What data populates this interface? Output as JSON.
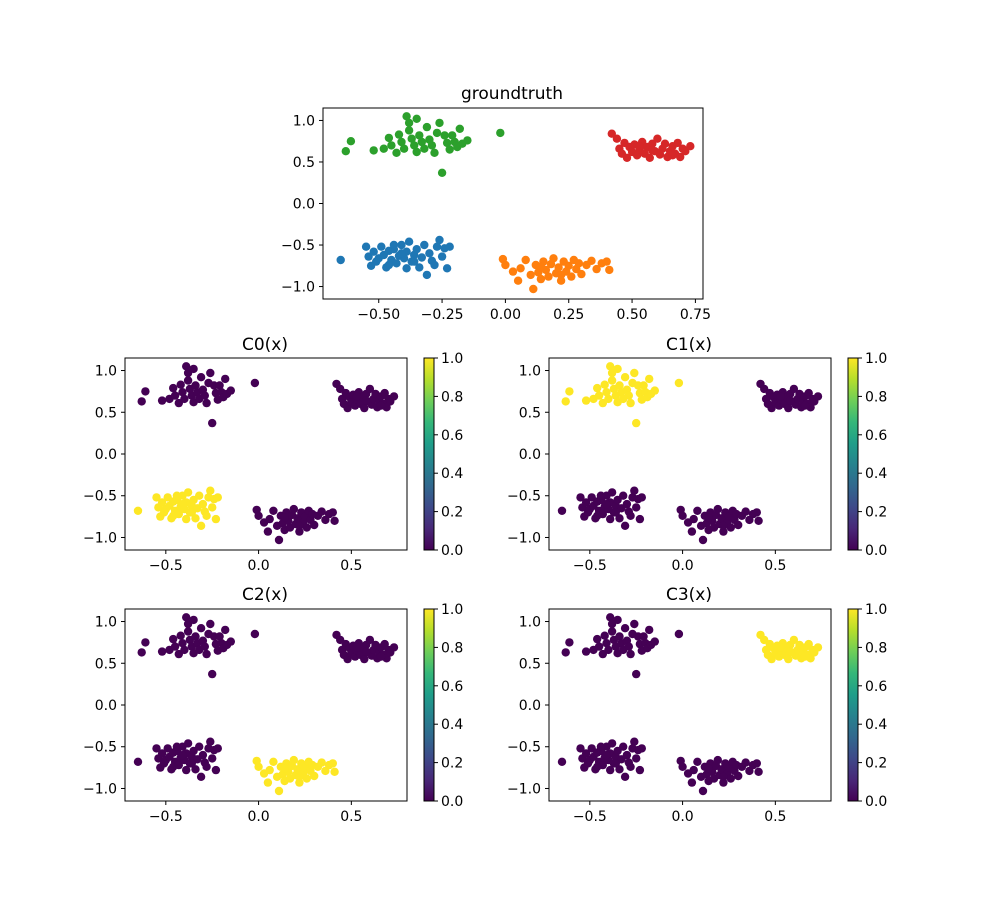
{
  "colors": {
    "groundtruth": [
      "#1f77b4",
      "#ff7f0e",
      "#2ca02c",
      "#d62728"
    ],
    "viridis_stops": [
      "#440154",
      "#482878",
      "#3e4989",
      "#31688e",
      "#26828e",
      "#1f9e89",
      "#35b779",
      "#6ece58",
      "#b5de2b",
      "#fde725"
    ]
  },
  "chart_data": [
    {
      "id": "groundtruth",
      "type": "scatter",
      "title": "groundtruth",
      "xlim": [
        -0.72,
        0.78
      ],
      "ylim": [
        -1.15,
        1.15
      ],
      "xticks": [
        -0.5,
        -0.25,
        0.0,
        0.25,
        0.5,
        0.75
      ],
      "xtick_labels": [
        "−0.50",
        "−0.25",
        "0.00",
        "0.25",
        "0.50",
        "0.75"
      ],
      "yticks": [
        -1.0,
        -0.5,
        0.0,
        0.5,
        1.0
      ],
      "ytick_labels": [
        "−1.0",
        "−0.5",
        "0.0",
        "0.5",
        "1.0"
      ],
      "colorbar": false,
      "series": [
        {
          "cluster": 0,
          "points": [
            [
              -0.65,
              -0.68
            ],
            [
              -0.55,
              -0.52
            ],
            [
              -0.54,
              -0.64
            ],
            [
              -0.53,
              -0.75
            ],
            [
              -0.52,
              -0.58
            ],
            [
              -0.51,
              -0.7
            ],
            [
              -0.5,
              -0.66
            ],
            [
              -0.49,
              -0.52
            ],
            [
              -0.48,
              -0.62
            ],
            [
              -0.47,
              -0.77
            ],
            [
              -0.46,
              -0.57
            ],
            [
              -0.45,
              -0.68
            ],
            [
              -0.44,
              -0.55
            ],
            [
              -0.43,
              -0.72
            ],
            [
              -0.42,
              -0.63
            ],
            [
              -0.41,
              -0.5
            ],
            [
              -0.4,
              -0.66
            ],
            [
              -0.39,
              -0.58
            ],
            [
              -0.38,
              -0.46
            ],
            [
              -0.37,
              -0.7
            ],
            [
              -0.36,
              -0.62
            ],
            [
              -0.35,
              -0.55
            ],
            [
              -0.34,
              -0.77
            ],
            [
              -0.33,
              -0.65
            ],
            [
              -0.32,
              -0.5
            ],
            [
              -0.31,
              -0.86
            ],
            [
              -0.3,
              -0.6
            ],
            [
              -0.29,
              -0.69
            ],
            [
              -0.28,
              -0.74
            ],
            [
              -0.27,
              -0.52
            ],
            [
              -0.26,
              -0.44
            ],
            [
              -0.25,
              -0.64
            ],
            [
              -0.24,
              -0.54
            ],
            [
              -0.23,
              -0.78
            ],
            [
              -0.22,
              -0.52
            ],
            [
              -0.46,
              -0.74
            ],
            [
              -0.41,
              -0.6
            ],
            [
              -0.36,
              -0.7
            ],
            [
              -0.44,
              -0.5
            ],
            [
              -0.39,
              -0.78
            ]
          ]
        },
        {
          "cluster": 1,
          "points": [
            [
              -0.01,
              -0.67
            ],
            [
              0.0,
              -0.74
            ],
            [
              0.03,
              -0.82
            ],
            [
              0.05,
              -0.93
            ],
            [
              0.06,
              -0.78
            ],
            [
              0.08,
              -0.68
            ],
            [
              0.1,
              -0.86
            ],
            [
              0.11,
              -1.03
            ],
            [
              0.12,
              -0.74
            ],
            [
              0.13,
              -0.83
            ],
            [
              0.14,
              -0.91
            ],
            [
              0.15,
              -0.7
            ],
            [
              0.16,
              -0.8
            ],
            [
              0.17,
              -0.88
            ],
            [
              0.18,
              -0.73
            ],
            [
              0.19,
              -0.66
            ],
            [
              0.2,
              -0.84
            ],
            [
              0.21,
              -0.77
            ],
            [
              0.22,
              -0.93
            ],
            [
              0.23,
              -0.7
            ],
            [
              0.24,
              -0.82
            ],
            [
              0.25,
              -0.75
            ],
            [
              0.26,
              -0.88
            ],
            [
              0.27,
              -0.68
            ],
            [
              0.28,
              -0.79
            ],
            [
              0.29,
              -0.72
            ],
            [
              0.3,
              -0.85
            ],
            [
              0.32,
              -0.74
            ],
            [
              0.34,
              -0.69
            ],
            [
              0.36,
              -0.79
            ],
            [
              0.38,
              -0.72
            ],
            [
              0.4,
              -0.7
            ],
            [
              0.41,
              -0.8
            ],
            [
              0.14,
              -0.76
            ],
            [
              0.22,
              -0.86
            ]
          ]
        },
        {
          "cluster": 2,
          "points": [
            [
              -0.63,
              0.63
            ],
            [
              -0.61,
              0.75
            ],
            [
              -0.52,
              0.64
            ],
            [
              -0.48,
              0.66
            ],
            [
              -0.46,
              0.79
            ],
            [
              -0.45,
              0.7
            ],
            [
              -0.43,
              0.61
            ],
            [
              -0.42,
              0.83
            ],
            [
              -0.41,
              0.74
            ],
            [
              -0.4,
              0.66
            ],
            [
              -0.39,
              1.05
            ],
            [
              -0.38,
              0.97
            ],
            [
              -0.38,
              0.88
            ],
            [
              -0.37,
              0.78
            ],
            [
              -0.36,
              0.7
            ],
            [
              -0.35,
              0.62
            ],
            [
              -0.35,
              1.02
            ],
            [
              -0.34,
              0.82
            ],
            [
              -0.33,
              0.74
            ],
            [
              -0.32,
              0.66
            ],
            [
              -0.31,
              0.92
            ],
            [
              -0.3,
              0.77
            ],
            [
              -0.29,
              0.7
            ],
            [
              -0.28,
              0.61
            ],
            [
              -0.27,
              0.85
            ],
            [
              -0.26,
              0.97
            ],
            [
              -0.25,
              0.37
            ],
            [
              -0.24,
              0.82
            ],
            [
              -0.23,
              0.73
            ],
            [
              -0.22,
              0.65
            ],
            [
              -0.21,
              0.82
            ],
            [
              -0.2,
              0.74
            ],
            [
              -0.19,
              0.68
            ],
            [
              -0.18,
              0.9
            ],
            [
              -0.17,
              0.72
            ],
            [
              -0.15,
              0.76
            ],
            [
              -0.02,
              0.85
            ]
          ]
        },
        {
          "cluster": 3,
          "points": [
            [
              0.42,
              0.84
            ],
            [
              0.44,
              0.78
            ],
            [
              0.45,
              0.66
            ],
            [
              0.46,
              0.6
            ],
            [
              0.47,
              0.73
            ],
            [
              0.48,
              0.55
            ],
            [
              0.49,
              0.68
            ],
            [
              0.5,
              0.62
            ],
            [
              0.51,
              0.71
            ],
            [
              0.52,
              0.58
            ],
            [
              0.53,
              0.65
            ],
            [
              0.54,
              0.74
            ],
            [
              0.55,
              0.6
            ],
            [
              0.56,
              0.68
            ],
            [
              0.57,
              0.55
            ],
            [
              0.58,
              0.72
            ],
            [
              0.59,
              0.63
            ],
            [
              0.6,
              0.78
            ],
            [
              0.61,
              0.59
            ],
            [
              0.62,
              0.66
            ],
            [
              0.63,
              0.72
            ],
            [
              0.64,
              0.56
            ],
            [
              0.65,
              0.63
            ],
            [
              0.66,
              0.69
            ],
            [
              0.67,
              0.6
            ],
            [
              0.68,
              0.73
            ],
            [
              0.69,
              0.56
            ],
            [
              0.7,
              0.66
            ],
            [
              0.71,
              0.63
            ],
            [
              0.73,
              0.69
            ],
            [
              0.58,
              0.64
            ],
            [
              0.66,
              0.58
            ],
            [
              0.53,
              0.69
            ]
          ]
        }
      ]
    },
    {
      "id": "c0",
      "type": "scatter",
      "title": "C0(x)",
      "highlight_cluster": 0,
      "xlim": [
        -0.72,
        0.8
      ],
      "ylim": [
        -1.15,
        1.15
      ],
      "xticks": [
        -0.5,
        0.0,
        0.5
      ],
      "xtick_labels": [
        "−0.5",
        "0.0",
        "0.5"
      ],
      "yticks": [
        -1.0,
        -0.5,
        0.0,
        0.5,
        1.0
      ],
      "ytick_labels": [
        "−1.0",
        "−0.5",
        "0.0",
        "0.5",
        "1.0"
      ],
      "colorbar": true,
      "colorbar_ticks": [
        0.0,
        0.2,
        0.4,
        0.6,
        0.8,
        1.0
      ],
      "colorbar_tick_labels": [
        "0.0",
        "0.2",
        "0.4",
        "0.6",
        "0.8",
        "1.0"
      ]
    },
    {
      "id": "c1",
      "type": "scatter",
      "title": "C1(x)",
      "highlight_cluster": 2,
      "xlim": [
        -0.72,
        0.8
      ],
      "ylim": [
        -1.15,
        1.15
      ],
      "xticks": [
        -0.5,
        0.0,
        0.5
      ],
      "xtick_labels": [
        "−0.5",
        "0.0",
        "0.5"
      ],
      "yticks": [
        -1.0,
        -0.5,
        0.0,
        0.5,
        1.0
      ],
      "ytick_labels": [
        "−1.0",
        "−0.5",
        "0.0",
        "0.5",
        "1.0"
      ],
      "colorbar": true,
      "colorbar_ticks": [
        0.0,
        0.2,
        0.4,
        0.6,
        0.8,
        1.0
      ],
      "colorbar_tick_labels": [
        "0.0",
        "0.2",
        "0.4",
        "0.6",
        "0.8",
        "1.0"
      ]
    },
    {
      "id": "c2",
      "type": "scatter",
      "title": "C2(x)",
      "highlight_cluster": 1,
      "xlim": [
        -0.72,
        0.8
      ],
      "ylim": [
        -1.15,
        1.15
      ],
      "xticks": [
        -0.5,
        0.0,
        0.5
      ],
      "xtick_labels": [
        "−0.5",
        "0.0",
        "0.5"
      ],
      "yticks": [
        -1.0,
        -0.5,
        0.0,
        0.5,
        1.0
      ],
      "ytick_labels": [
        "−1.0",
        "−0.5",
        "0.0",
        "0.5",
        "1.0"
      ],
      "colorbar": true,
      "colorbar_ticks": [
        0.0,
        0.2,
        0.4,
        0.6,
        0.8,
        1.0
      ],
      "colorbar_tick_labels": [
        "0.0",
        "0.2",
        "0.4",
        "0.6",
        "0.8",
        "1.0"
      ]
    },
    {
      "id": "c3",
      "type": "scatter",
      "title": "C3(x)",
      "highlight_cluster": 3,
      "xlim": [
        -0.72,
        0.8
      ],
      "ylim": [
        -1.15,
        1.15
      ],
      "xticks": [
        -0.5,
        0.0,
        0.5
      ],
      "xtick_labels": [
        "−0.5",
        "0.0",
        "0.5"
      ],
      "yticks": [
        -1.0,
        -0.5,
        0.0,
        0.5,
        1.0
      ],
      "ytick_labels": [
        "−1.0",
        "−0.5",
        "0.0",
        "0.5",
        "1.0"
      ],
      "colorbar": true,
      "colorbar_ticks": [
        0.0,
        0.2,
        0.4,
        0.6,
        0.8,
        1.0
      ],
      "colorbar_tick_labels": [
        "0.0",
        "0.2",
        "0.4",
        "0.6",
        "0.8",
        "1.0"
      ]
    }
  ]
}
